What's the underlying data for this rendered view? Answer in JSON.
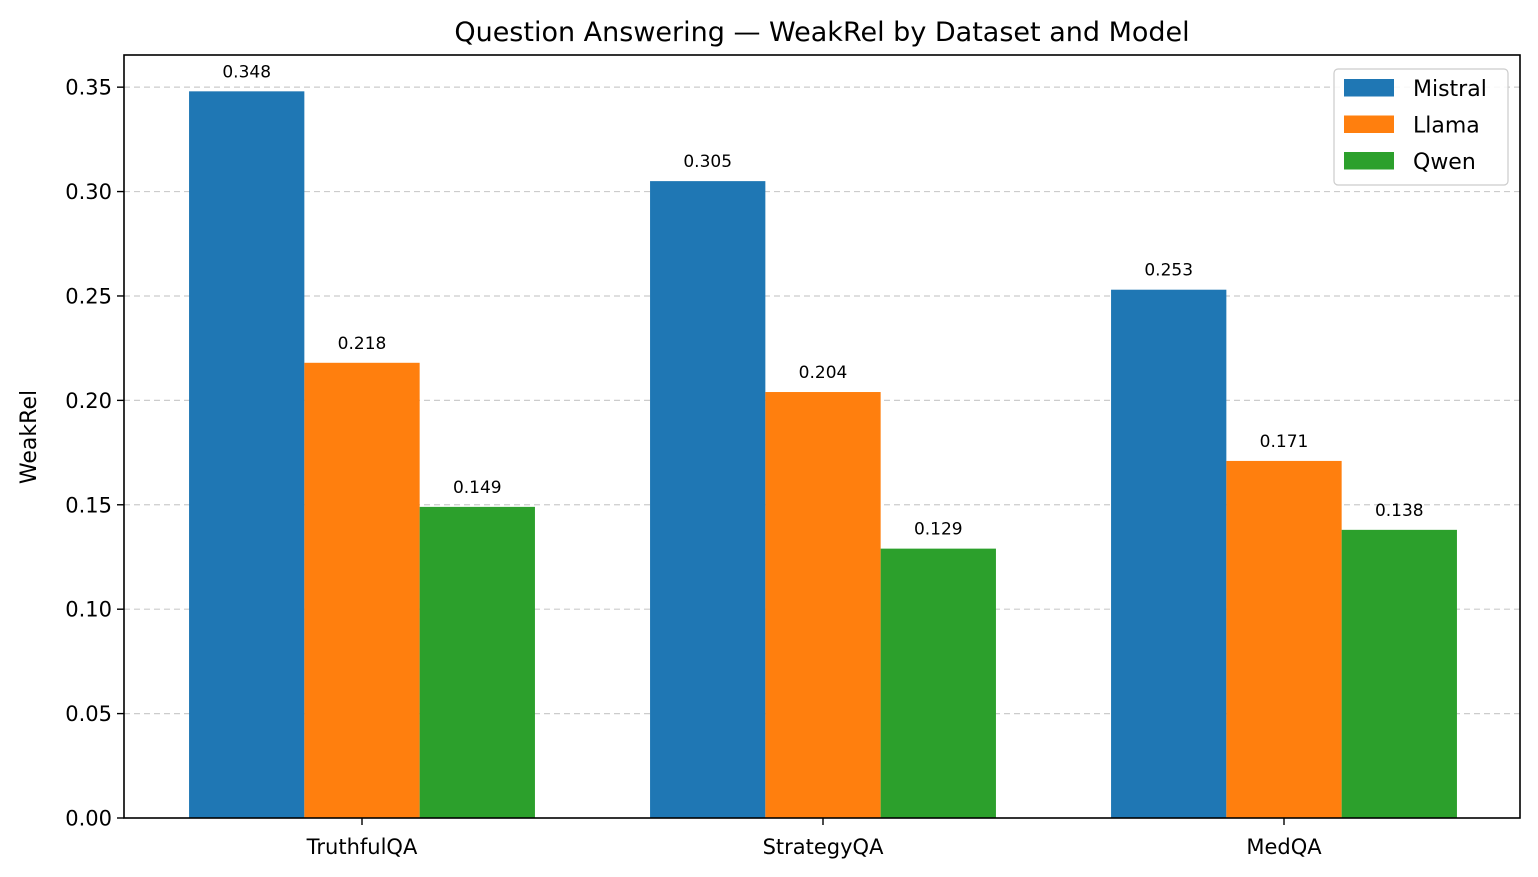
{
  "chart_data": {
    "type": "bar",
    "title": "Question Answering — WeakRel by Dataset and Model",
    "xlabel": "",
    "ylabel": "WeakRel",
    "categories": [
      "TruthfulQA",
      "StrategyQA",
      "MedQA"
    ],
    "series": [
      {
        "name": "Mistral",
        "color": "#1f77b4",
        "values": [
          0.348,
          0.305,
          0.253
        ],
        "labels": [
          "0.348",
          "0.305",
          "0.253"
        ]
      },
      {
        "name": "Llama",
        "color": "#ff7f0e",
        "values": [
          0.218,
          0.204,
          0.171
        ],
        "labels": [
          "0.218",
          "0.204",
          "0.171"
        ]
      },
      {
        "name": "Qwen",
        "color": "#2ca02c",
        "values": [
          0.149,
          0.129,
          0.138
        ],
        "labels": [
          "0.149",
          "0.129",
          "0.138"
        ]
      }
    ],
    "ylim": [
      0,
      0.3654
    ],
    "yticks": [
      0,
      0.05,
      0.1,
      0.15,
      0.2,
      0.25,
      0.3,
      0.35
    ],
    "ytick_labels": [
      "0.00",
      "0.05",
      "0.10",
      "0.15",
      "0.20",
      "0.25",
      "0.30",
      "0.35"
    ],
    "grid": "y-dashed",
    "legend_position": "top-right"
  }
}
